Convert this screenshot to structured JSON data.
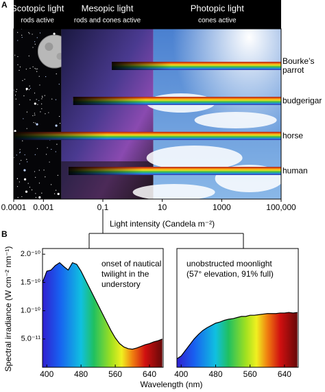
{
  "chart_data": [
    {
      "type": "range-bar",
      "panel": "A",
      "zones": [
        {
          "title": "Scotopic light",
          "subtitle": "rods active",
          "range": [
            0.0001,
            0.004
          ]
        },
        {
          "title": "Mesopic light",
          "subtitle": "rods and cones active",
          "range": [
            0.004,
            5
          ]
        },
        {
          "title": "Photopic light",
          "subtitle": "cones active",
          "range": [
            5,
            100000
          ]
        }
      ],
      "categories": [
        "Bourke’s parrot",
        "budgerigar",
        "horse",
        "human"
      ],
      "ranges": [
        [
          0.2,
          100000
        ],
        [
          0.01,
          100000
        ],
        [
          0.0001,
          100000
        ],
        [
          0.007,
          100000
        ]
      ],
      "xlim": [
        0.0001,
        100000
      ],
      "log_x": true,
      "xticks": [
        0.0001,
        0.001,
        0.1,
        10,
        1000,
        {
          "value": 100000,
          "label": "100,000"
        }
      ],
      "xlabel": "Light intensity (Candela m⁻²)"
    },
    {
      "type": "spectrum-area",
      "panel": "B",
      "x": [
        390,
        400,
        410,
        420,
        430,
        440,
        450,
        460,
        470,
        480,
        490,
        500,
        510,
        520,
        530,
        540,
        550,
        560,
        570,
        580,
        590,
        600,
        610,
        620,
        630,
        640,
        650,
        660,
        670
      ],
      "values": [
        1.5e-10,
        1.7e-10,
        1.72e-10,
        1.8e-10,
        1.85e-10,
        1.78e-10,
        1.72e-10,
        1.85e-10,
        1.82e-10,
        1.7e-10,
        1.55e-10,
        1.4e-10,
        1.25e-10,
        1.1e-10,
        9.5e-11,
        8e-11,
        6.5e-11,
        5.2e-11,
        4.2e-11,
        3.6e-11,
        3.3e-11,
        3.2e-11,
        3.4e-11,
        3.7e-11,
        4e-11,
        4.2e-11,
        4.5e-11,
        4.7e-11,
        5e-11
      ],
      "xlim": [
        390,
        672
      ],
      "ylim": [
        0,
        2.1e-10
      ],
      "xticks": [
        400,
        480,
        560,
        640
      ],
      "yticks": [
        {
          "value": 5e-11,
          "label": "5.0⁻¹¹"
        },
        {
          "value": 1e-10,
          "label": "1.0⁻¹⁰"
        },
        {
          "value": 1.5e-10,
          "label": "1.5⁻¹⁰"
        },
        {
          "value": 2e-10,
          "label": "2.0⁻¹⁰"
        }
      ],
      "ylabel": "Spectral irradiance (W cm⁻² nm⁻¹)",
      "xlabel": "Wavelength (nm)",
      "annotation": [
        "onset of nautical",
        "twilight in the",
        "understory"
      ]
    },
    {
      "type": "spectrum-area",
      "x": [
        390,
        400,
        410,
        420,
        430,
        440,
        450,
        460,
        470,
        480,
        490,
        500,
        510,
        520,
        530,
        540,
        550,
        560,
        570,
        580,
        590,
        600,
        610,
        620,
        630,
        640,
        650,
        660,
        670
      ],
      "values": [
        1.5e-11,
        2e-11,
        3e-11,
        4e-11,
        5e-11,
        5.8e-11,
        6.5e-11,
        7e-11,
        7.4e-11,
        7.8e-11,
        8e-11,
        8.3e-11,
        8.5e-11,
        8.6e-11,
        8.8e-11,
        9e-11,
        9e-11,
        9.2e-11,
        9.2e-11,
        9.3e-11,
        9.4e-11,
        9.5e-11,
        9.5e-11,
        9.5e-11,
        9.6e-11,
        9.6e-11,
        9.7e-11,
        9.6e-11,
        9.7e-11
      ],
      "xlim": [
        390,
        672
      ],
      "ylim": [
        0,
        2.1e-10
      ],
      "xticks": [
        400,
        480,
        560,
        640
      ],
      "annotation": [
        "unobstructed moonlight",
        "(57° elevation, 91% full)"
      ]
    }
  ]
}
